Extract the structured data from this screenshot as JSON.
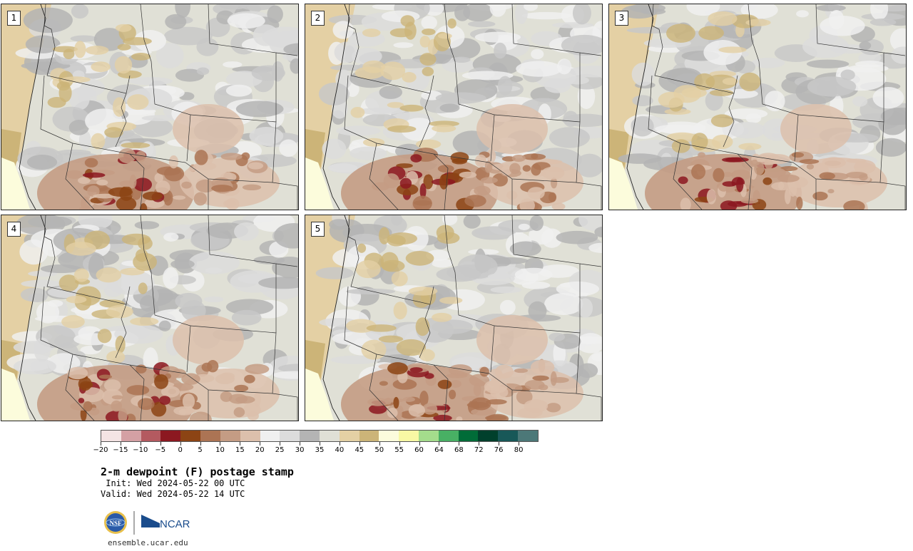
{
  "product": {
    "title": "2-m dewpoint (F) postage stamp",
    "init": " Init: Wed 2024-05-22 00 UTC",
    "valid": "Valid: Wed 2024-05-22 14 UTC",
    "website": "ensemble.ucar.edu"
  },
  "panels": [
    {
      "label": "1"
    },
    {
      "label": "2"
    },
    {
      "label": "3"
    },
    {
      "label": "4"
    },
    {
      "label": "5"
    }
  ],
  "colorbar": {
    "colors": [
      "#f4e4e4",
      "#d4a0a4",
      "#b45a60",
      "#8c1820",
      "#8c4414",
      "#ac7454",
      "#c49c84",
      "#dcc0ac",
      "#f0f0f0",
      "#dcdcdc",
      "#b4b4b4",
      "#e0e0d6",
      "#e4d0a4",
      "#ccb478",
      "#fcfcdc",
      "#f8f8a4",
      "#a4dc8c",
      "#48b064",
      "#006c38",
      "#00402c",
      "#185858",
      "#4c7878"
    ],
    "tick_labels": [
      "−20",
      "−15",
      "−10",
      "−5",
      "0",
      "5",
      "10",
      "15",
      "20",
      "25",
      "30",
      "35",
      "40",
      "45",
      "50",
      "55",
      "60",
      "64",
      "68",
      "72",
      "76",
      "80"
    ]
  },
  "logos": {
    "nsf": "NSF",
    "ncar": "NCAR"
  }
}
